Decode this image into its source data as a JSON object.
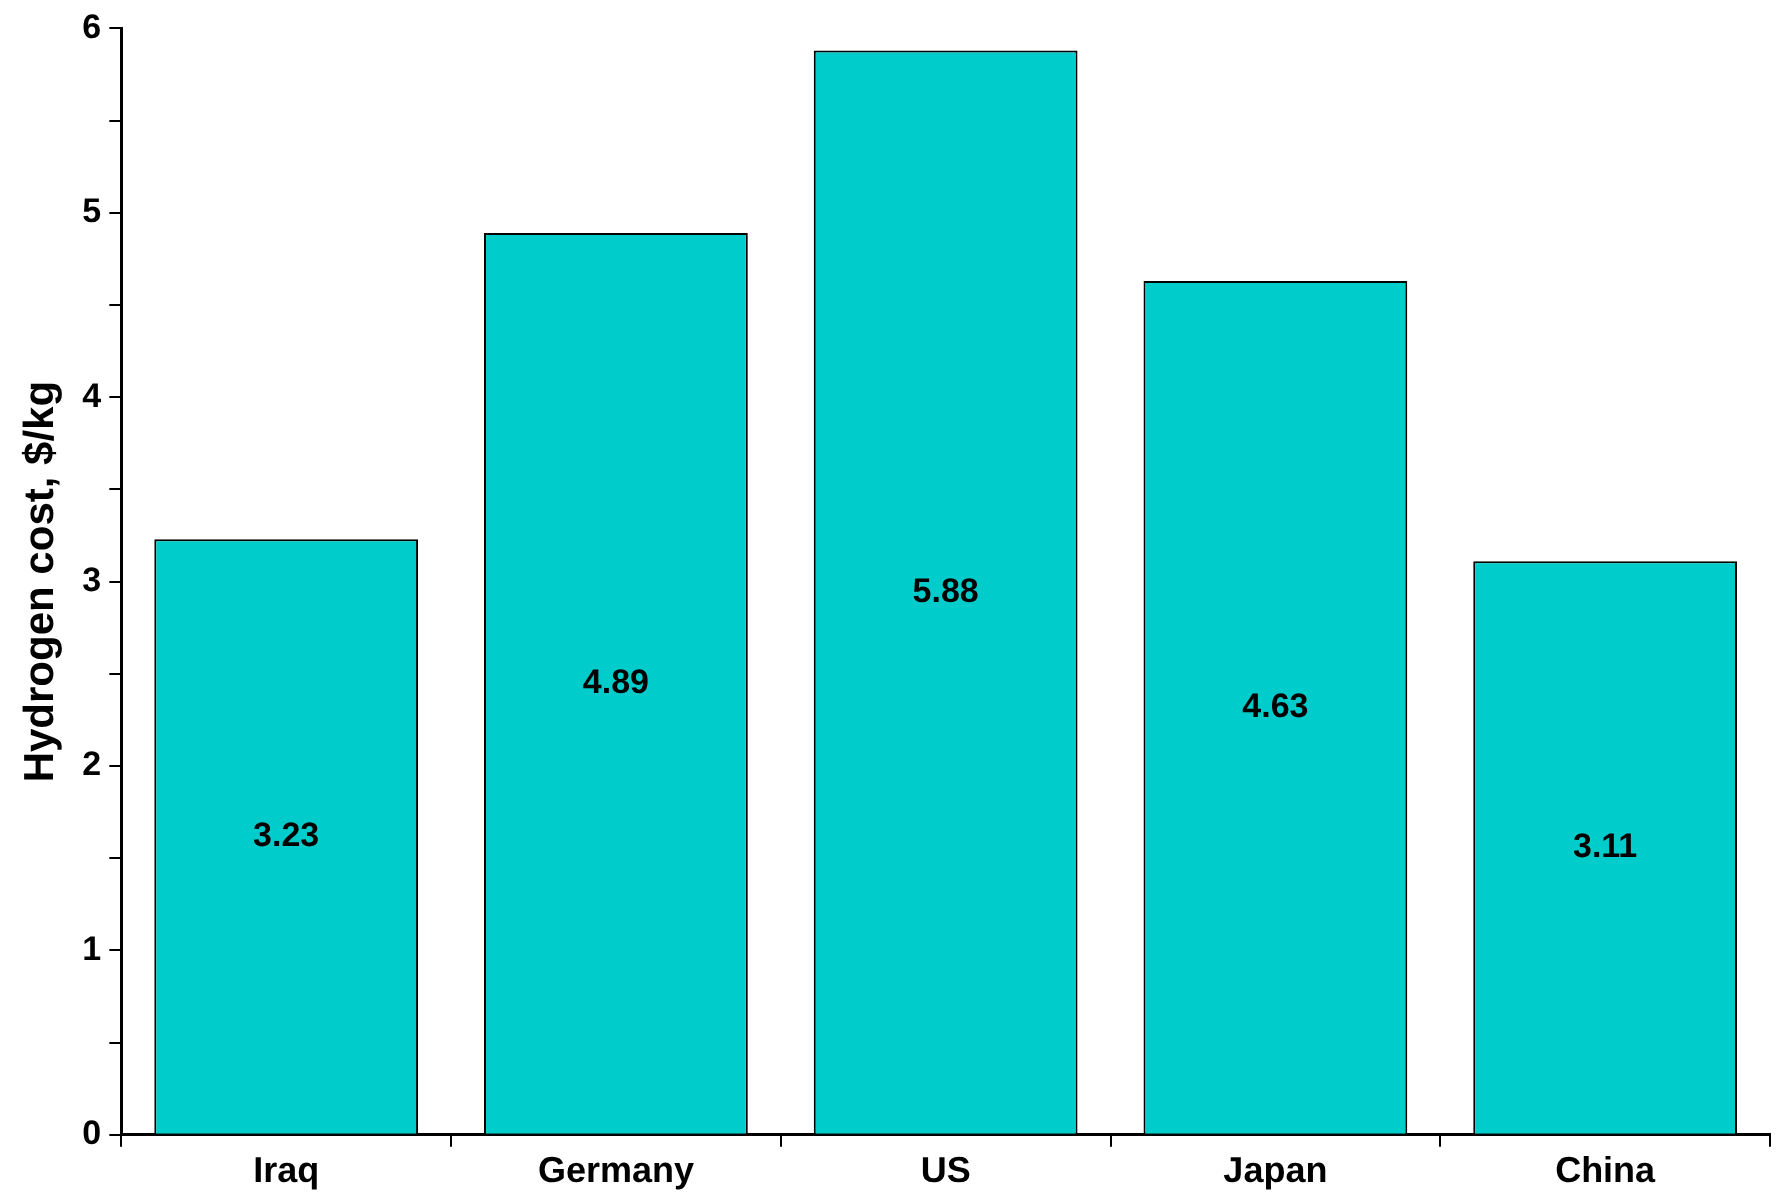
{
  "chart_data": {
    "type": "bar",
    "ylabel": "Hydrogen cost, $/kg",
    "categories": [
      "Iraq",
      "Germany",
      "US",
      "Japan",
      "China"
    ],
    "values": [
      3.23,
      4.89,
      5.88,
      4.63,
      3.11
    ],
    "color": "#00cccc",
    "data_labels": true,
    "ylim": [
      0,
      6
    ],
    "yticks": [
      0,
      {
        "value": 0.5,
        "label": null
      },
      1,
      {
        "value": 1.5,
        "label": null
      },
      2,
      {
        "value": 2.5,
        "label": null
      },
      3,
      {
        "value": 3.5,
        "label": null
      },
      4,
      {
        "value": 4.5,
        "label": null
      },
      5,
      {
        "value": 5.5,
        "label": null
      },
      6
    ],
    "grid": false,
    "legend": false
  }
}
